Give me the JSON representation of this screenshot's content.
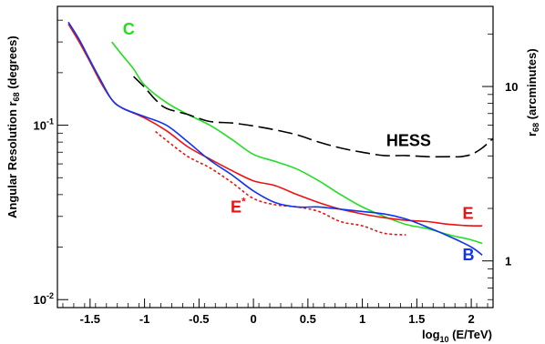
{
  "chart_data": {
    "type": "line",
    "xlabel": "log",
    "xlabel_sub": "10",
    "xlabel_rest": " (E/TeV)",
    "ylabel": "Angular Resolution r",
    "ylabel_sub": "68",
    "ylabel_rest": " (degrees)",
    "y2label": "r",
    "y2label_sub": "68",
    "y2label_rest": " (arcminutes)",
    "xlim": [
      -1.8,
      2.2
    ],
    "ylim": [
      0.009,
      0.48
    ],
    "yscale": "log",
    "x_ticks": [
      -1.5,
      -1,
      -0.5,
      0,
      0.5,
      1,
      1.5,
      2
    ],
    "x_tick_labels": [
      "-1.5",
      "-1",
      "-0.5",
      "0",
      "0.5",
      "1",
      "1.5",
      "2"
    ],
    "y_major_ticks": [
      0.01,
      0.1
    ],
    "y_tick_labels": [
      {
        "base": "10",
        "exp": "-2"
      },
      {
        "base": "10",
        "exp": "-1"
      }
    ],
    "y2_major_labels": [
      {
        "value_arcmin": 1,
        "label": "1"
      },
      {
        "value_arcmin": 10,
        "label": "10"
      }
    ],
    "grid": false,
    "series": [
      {
        "name": "C",
        "color": "#22dd22",
        "dash": "solid",
        "label_at": [
          -1.2,
          0.33
        ],
        "x": [
          -1.3,
          -1.2,
          -1.1,
          -1.0,
          -0.8,
          -0.6,
          -0.4,
          -0.2,
          0.0,
          0.2,
          0.4,
          0.6,
          0.8,
          1.0,
          1.2,
          1.4,
          1.6,
          1.8,
          2.0,
          2.1
        ],
        "y": [
          0.3,
          0.25,
          0.21,
          0.17,
          0.135,
          0.115,
          0.1,
          0.083,
          0.068,
          0.062,
          0.056,
          0.048,
          0.04,
          0.034,
          0.03,
          0.027,
          0.0255,
          0.0235,
          0.022,
          0.021
        ]
      },
      {
        "name": "HESS",
        "color": "#000000",
        "dash": "long",
        "label_at": [
          1.22,
          0.076
        ],
        "x": [
          -1.1,
          -1.0,
          -0.9,
          -0.8,
          -0.6,
          -0.4,
          -0.2,
          0.0,
          0.2,
          0.4,
          0.6,
          0.8,
          1.0,
          1.2,
          1.4,
          1.6,
          1.8,
          1.9,
          2.0,
          2.1,
          2.2
        ],
        "y": [
          0.19,
          0.165,
          0.14,
          0.125,
          0.115,
          0.105,
          0.103,
          0.099,
          0.094,
          0.088,
          0.08,
          0.074,
          0.07,
          0.067,
          0.067,
          0.066,
          0.066,
          0.066,
          0.068,
          0.074,
          0.084
        ]
      },
      {
        "name": "E",
        "color": "#ee1111",
        "dash": "solid",
        "label_at": [
          1.92,
          0.029
        ],
        "x": [
          -1.7,
          -1.6,
          -1.5,
          -1.4,
          -1.3,
          -1.2,
          -1.0,
          -0.8,
          -0.6,
          -0.4,
          -0.2,
          0.0,
          0.2,
          0.4,
          0.6,
          0.8,
          1.0,
          1.2,
          1.4,
          1.6,
          1.8,
          2.0,
          2.1
        ],
        "y": [
          0.38,
          0.3,
          0.23,
          0.175,
          0.14,
          0.125,
          0.11,
          0.093,
          0.075,
          0.064,
          0.055,
          0.048,
          0.045,
          0.04,
          0.036,
          0.033,
          0.031,
          0.0295,
          0.0285,
          0.028,
          0.027,
          0.0265,
          0.0265
        ]
      },
      {
        "name": "E*",
        "color": "#ee1111",
        "dash": "dotted",
        "label_at": [
          -0.21,
          0.0315
        ],
        "x": [
          -0.9,
          -0.8,
          -0.6,
          -0.4,
          -0.2,
          0.0,
          0.2,
          0.4,
          0.6,
          0.8,
          1.0,
          1.2,
          1.4
        ],
        "y": [
          0.092,
          0.082,
          0.066,
          0.057,
          0.047,
          0.038,
          0.035,
          0.034,
          0.032,
          0.028,
          0.0265,
          0.024,
          0.0235
        ]
      },
      {
        "name": "B",
        "color": "#1133ee",
        "dash": "solid",
        "label_at": [
          1.92,
          0.0168
        ],
        "x": [
          -1.7,
          -1.6,
          -1.5,
          -1.4,
          -1.3,
          -1.2,
          -1.0,
          -0.8,
          -0.6,
          -0.4,
          -0.2,
          0.0,
          0.2,
          0.4,
          0.6,
          0.8,
          1.0,
          1.2,
          1.4,
          1.6,
          1.8,
          2.0,
          2.1
        ],
        "y": [
          0.39,
          0.31,
          0.235,
          0.18,
          0.14,
          0.125,
          0.112,
          0.1,
          0.08,
          0.063,
          0.052,
          0.042,
          0.036,
          0.034,
          0.034,
          0.033,
          0.032,
          0.031,
          0.029,
          0.026,
          0.023,
          0.02,
          0.018
        ]
      }
    ]
  }
}
